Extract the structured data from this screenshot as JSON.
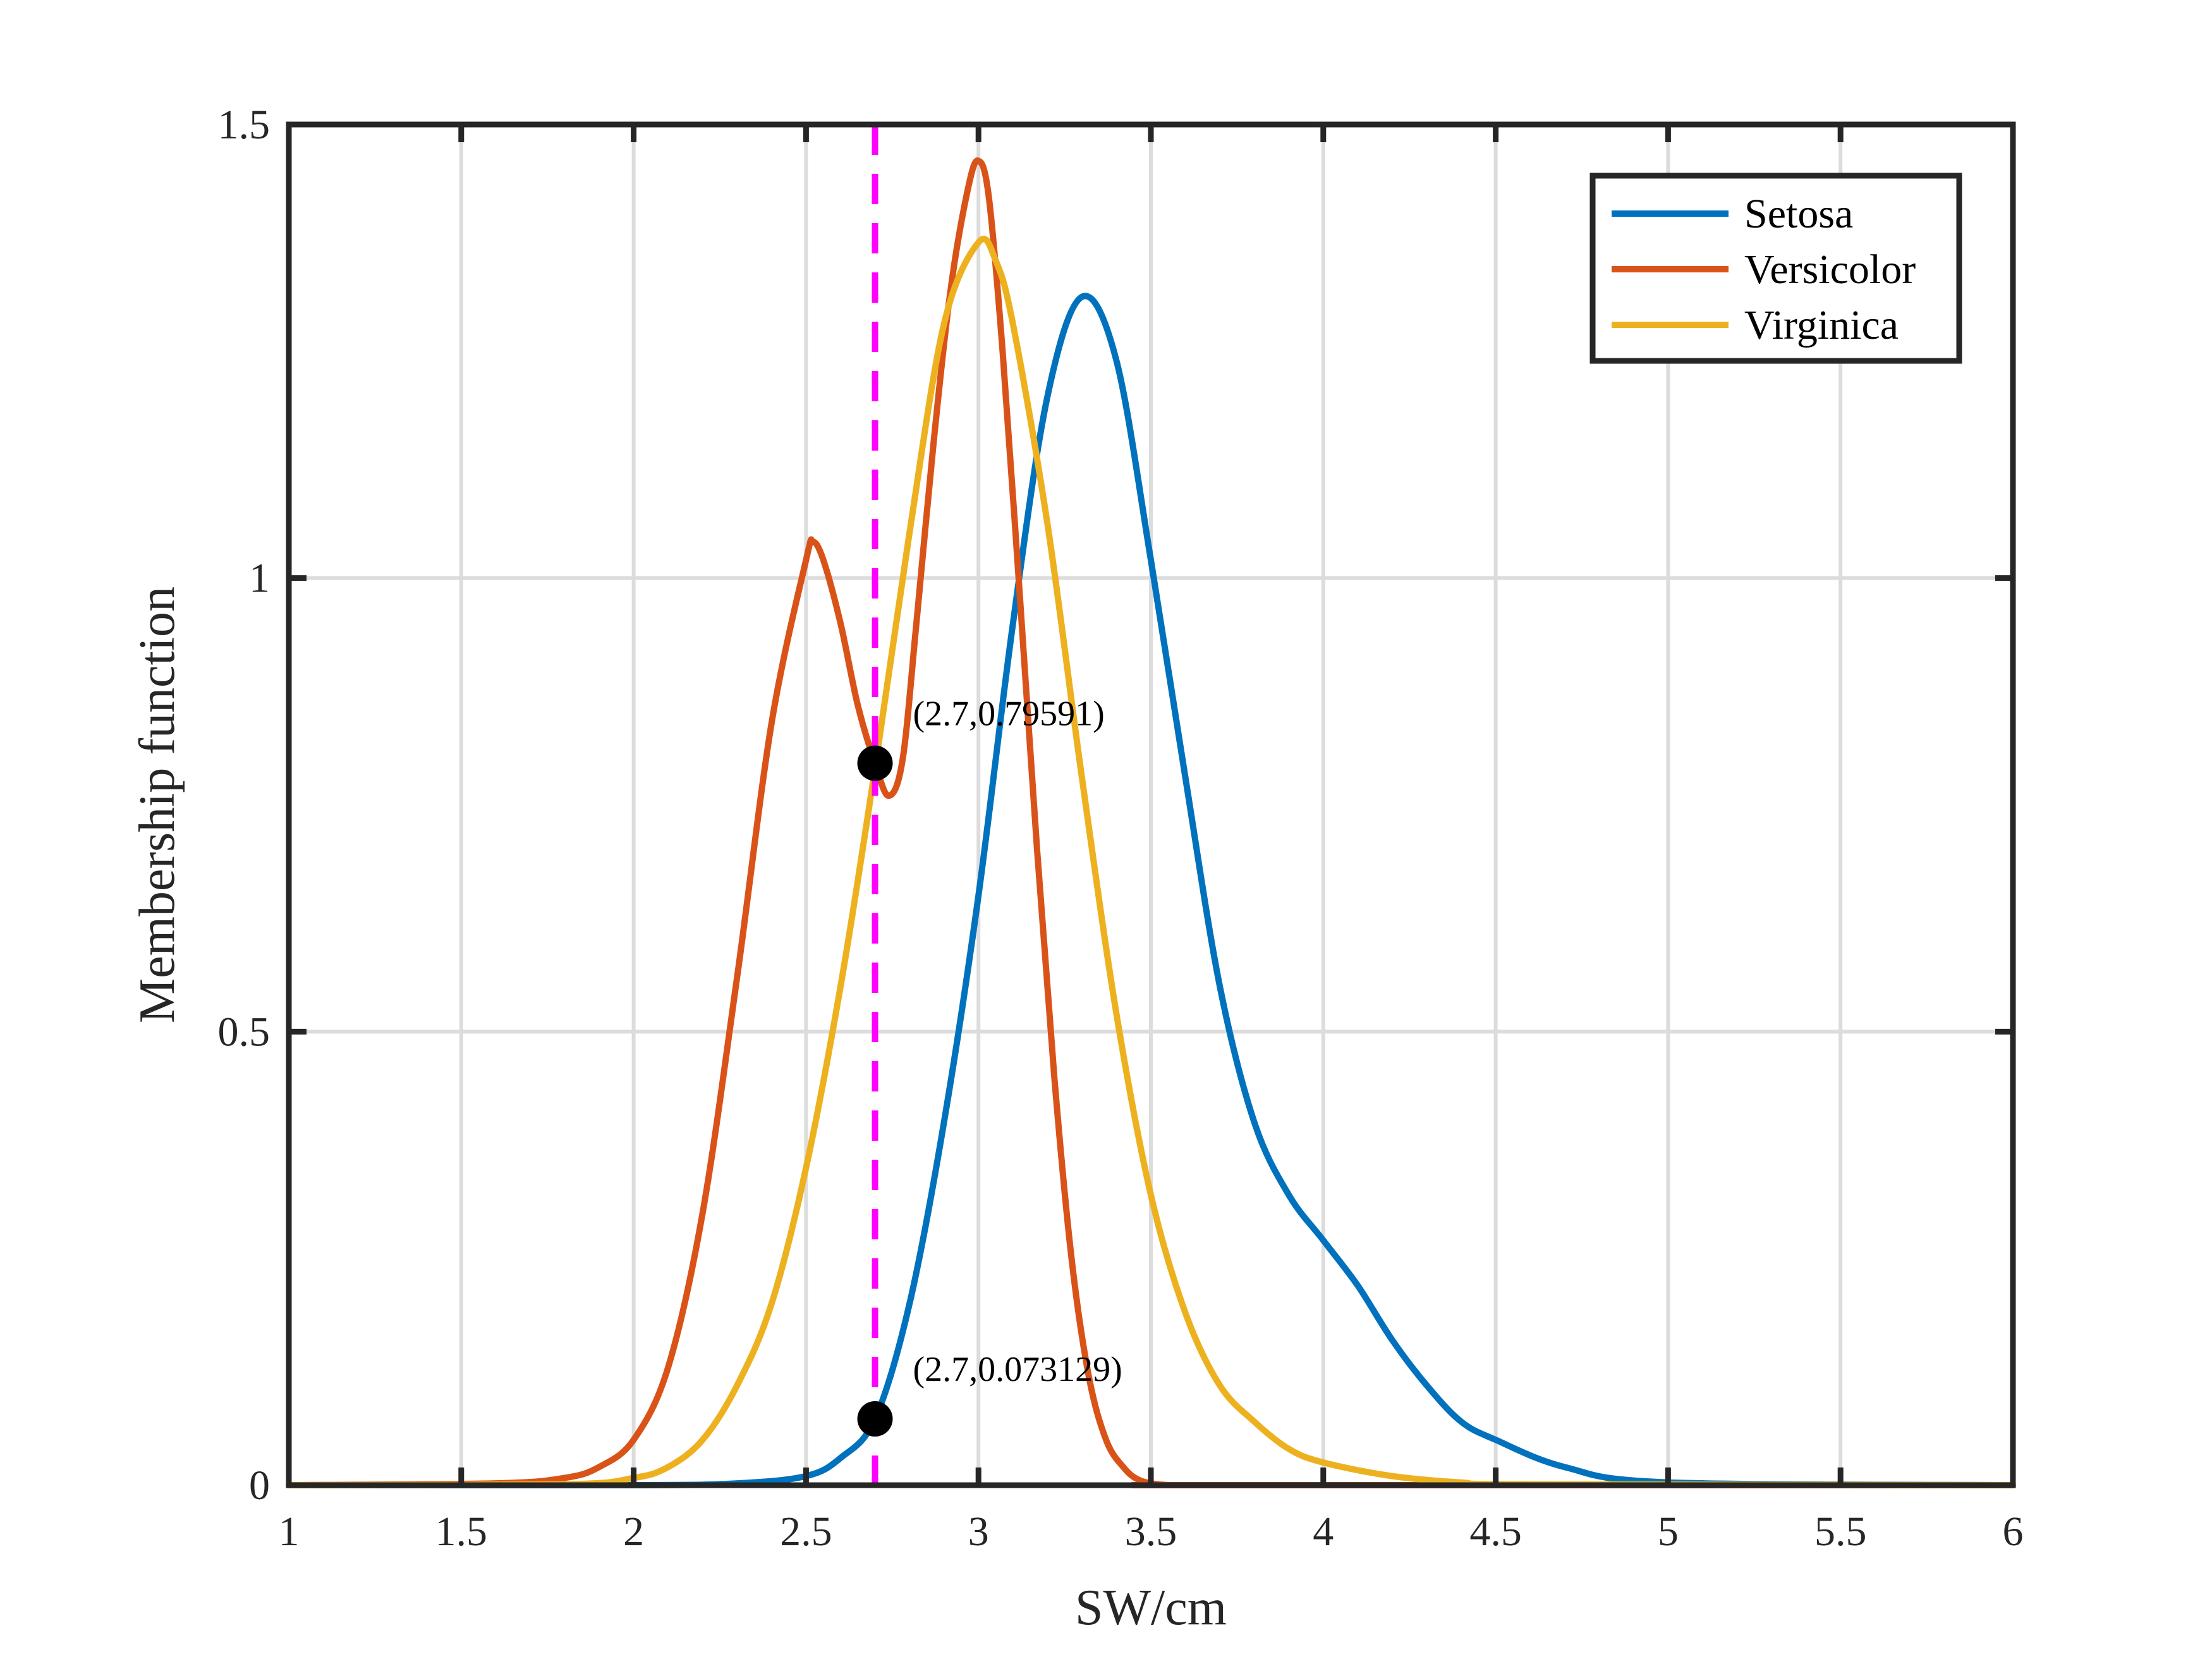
{
  "chart_data": {
    "type": "line",
    "title": "",
    "xlabel": "SW/cm",
    "ylabel": "Membership function",
    "xlim": [
      1,
      6
    ],
    "ylim": [
      0,
      1.5
    ],
    "xticks": [
      1,
      1.5,
      2,
      2.5,
      3,
      3.5,
      4,
      4.5,
      5,
      5.5,
      6
    ],
    "xtick_labels": [
      "1",
      "1.5",
      "2",
      "2.5",
      "3",
      "3.5",
      "4",
      "4.5",
      "5",
      "5.5",
      "6"
    ],
    "yticks": [
      0,
      0.5,
      1,
      1.5
    ],
    "ytick_labels": [
      "0",
      "0.5",
      "1",
      "1.5"
    ],
    "grid": true,
    "legend_position": "top-right",
    "series": [
      {
        "name": "Setosa",
        "color": "#0072BD",
        "x": [
          1,
          2.0,
          2.3,
          2.5,
          2.6,
          2.7,
          2.8,
          2.9,
          3.0,
          3.1,
          3.2,
          3.3,
          3.4,
          3.5,
          3.6,
          3.7,
          3.8,
          3.9,
          4.0,
          4.1,
          4.2,
          4.3,
          4.4,
          4.5,
          4.7,
          5.0,
          6
        ],
        "y": [
          0,
          0,
          0.002,
          0.01,
          0.03,
          0.073,
          0.2,
          0.4,
          0.65,
          0.95,
          1.2,
          1.31,
          1.24,
          1.02,
          0.78,
          0.55,
          0.4,
          0.32,
          0.27,
          0.22,
          0.16,
          0.11,
          0.07,
          0.05,
          0.02,
          0.003,
          0
        ]
      },
      {
        "name": "Versicolor",
        "color": "#D95319",
        "x": [
          1,
          1.6,
          1.8,
          1.9,
          2.0,
          2.1,
          2.2,
          2.3,
          2.4,
          2.5,
          2.52,
          2.55,
          2.6,
          2.65,
          2.7,
          2.74,
          2.78,
          2.82,
          2.87,
          2.92,
          2.97,
          3.0,
          3.03,
          3.07,
          3.12,
          3.17,
          3.22,
          3.27,
          3.32,
          3.37,
          3.42,
          3.47,
          3.55,
          3.65,
          6
        ],
        "y": [
          0,
          0.002,
          0.008,
          0.02,
          0.05,
          0.13,
          0.3,
          0.56,
          0.84,
          1.02,
          1.04,
          1.02,
          0.95,
          0.86,
          0.79591,
          0.76,
          0.8,
          0.95,
          1.15,
          1.32,
          1.43,
          1.46,
          1.42,
          1.25,
          0.98,
          0.7,
          0.45,
          0.25,
          0.12,
          0.05,
          0.02,
          0.005,
          0,
          0,
          0
        ]
      },
      {
        "name": "Virginica",
        "color": "#EDB120",
        "x": [
          1,
          1.8,
          2.0,
          2.1,
          2.2,
          2.3,
          2.4,
          2.5,
          2.6,
          2.7,
          2.8,
          2.9,
          3.0,
          3.05,
          3.1,
          3.2,
          3.3,
          3.4,
          3.5,
          3.6,
          3.7,
          3.8,
          3.9,
          4.0,
          4.2,
          4.4,
          4.6,
          6
        ],
        "y": [
          0,
          0.001,
          0.008,
          0.02,
          0.05,
          0.11,
          0.2,
          0.35,
          0.55,
          0.79,
          1.05,
          1.28,
          1.37,
          1.35,
          1.28,
          1.06,
          0.78,
          0.52,
          0.32,
          0.19,
          0.11,
          0.07,
          0.04,
          0.025,
          0.01,
          0.003,
          0.001,
          0
        ]
      }
    ],
    "reference_lines": [
      {
        "orientation": "vertical",
        "x": 2.7,
        "color": "#FF00FF",
        "style": "dashed"
      }
    ],
    "annotations": [
      {
        "x": 2.7,
        "y": 0.79591,
        "label": "(2.7,0.79591)"
      },
      {
        "x": 2.7,
        "y": 0.073129,
        "label": "(2.7,0.073129)"
      }
    ]
  }
}
